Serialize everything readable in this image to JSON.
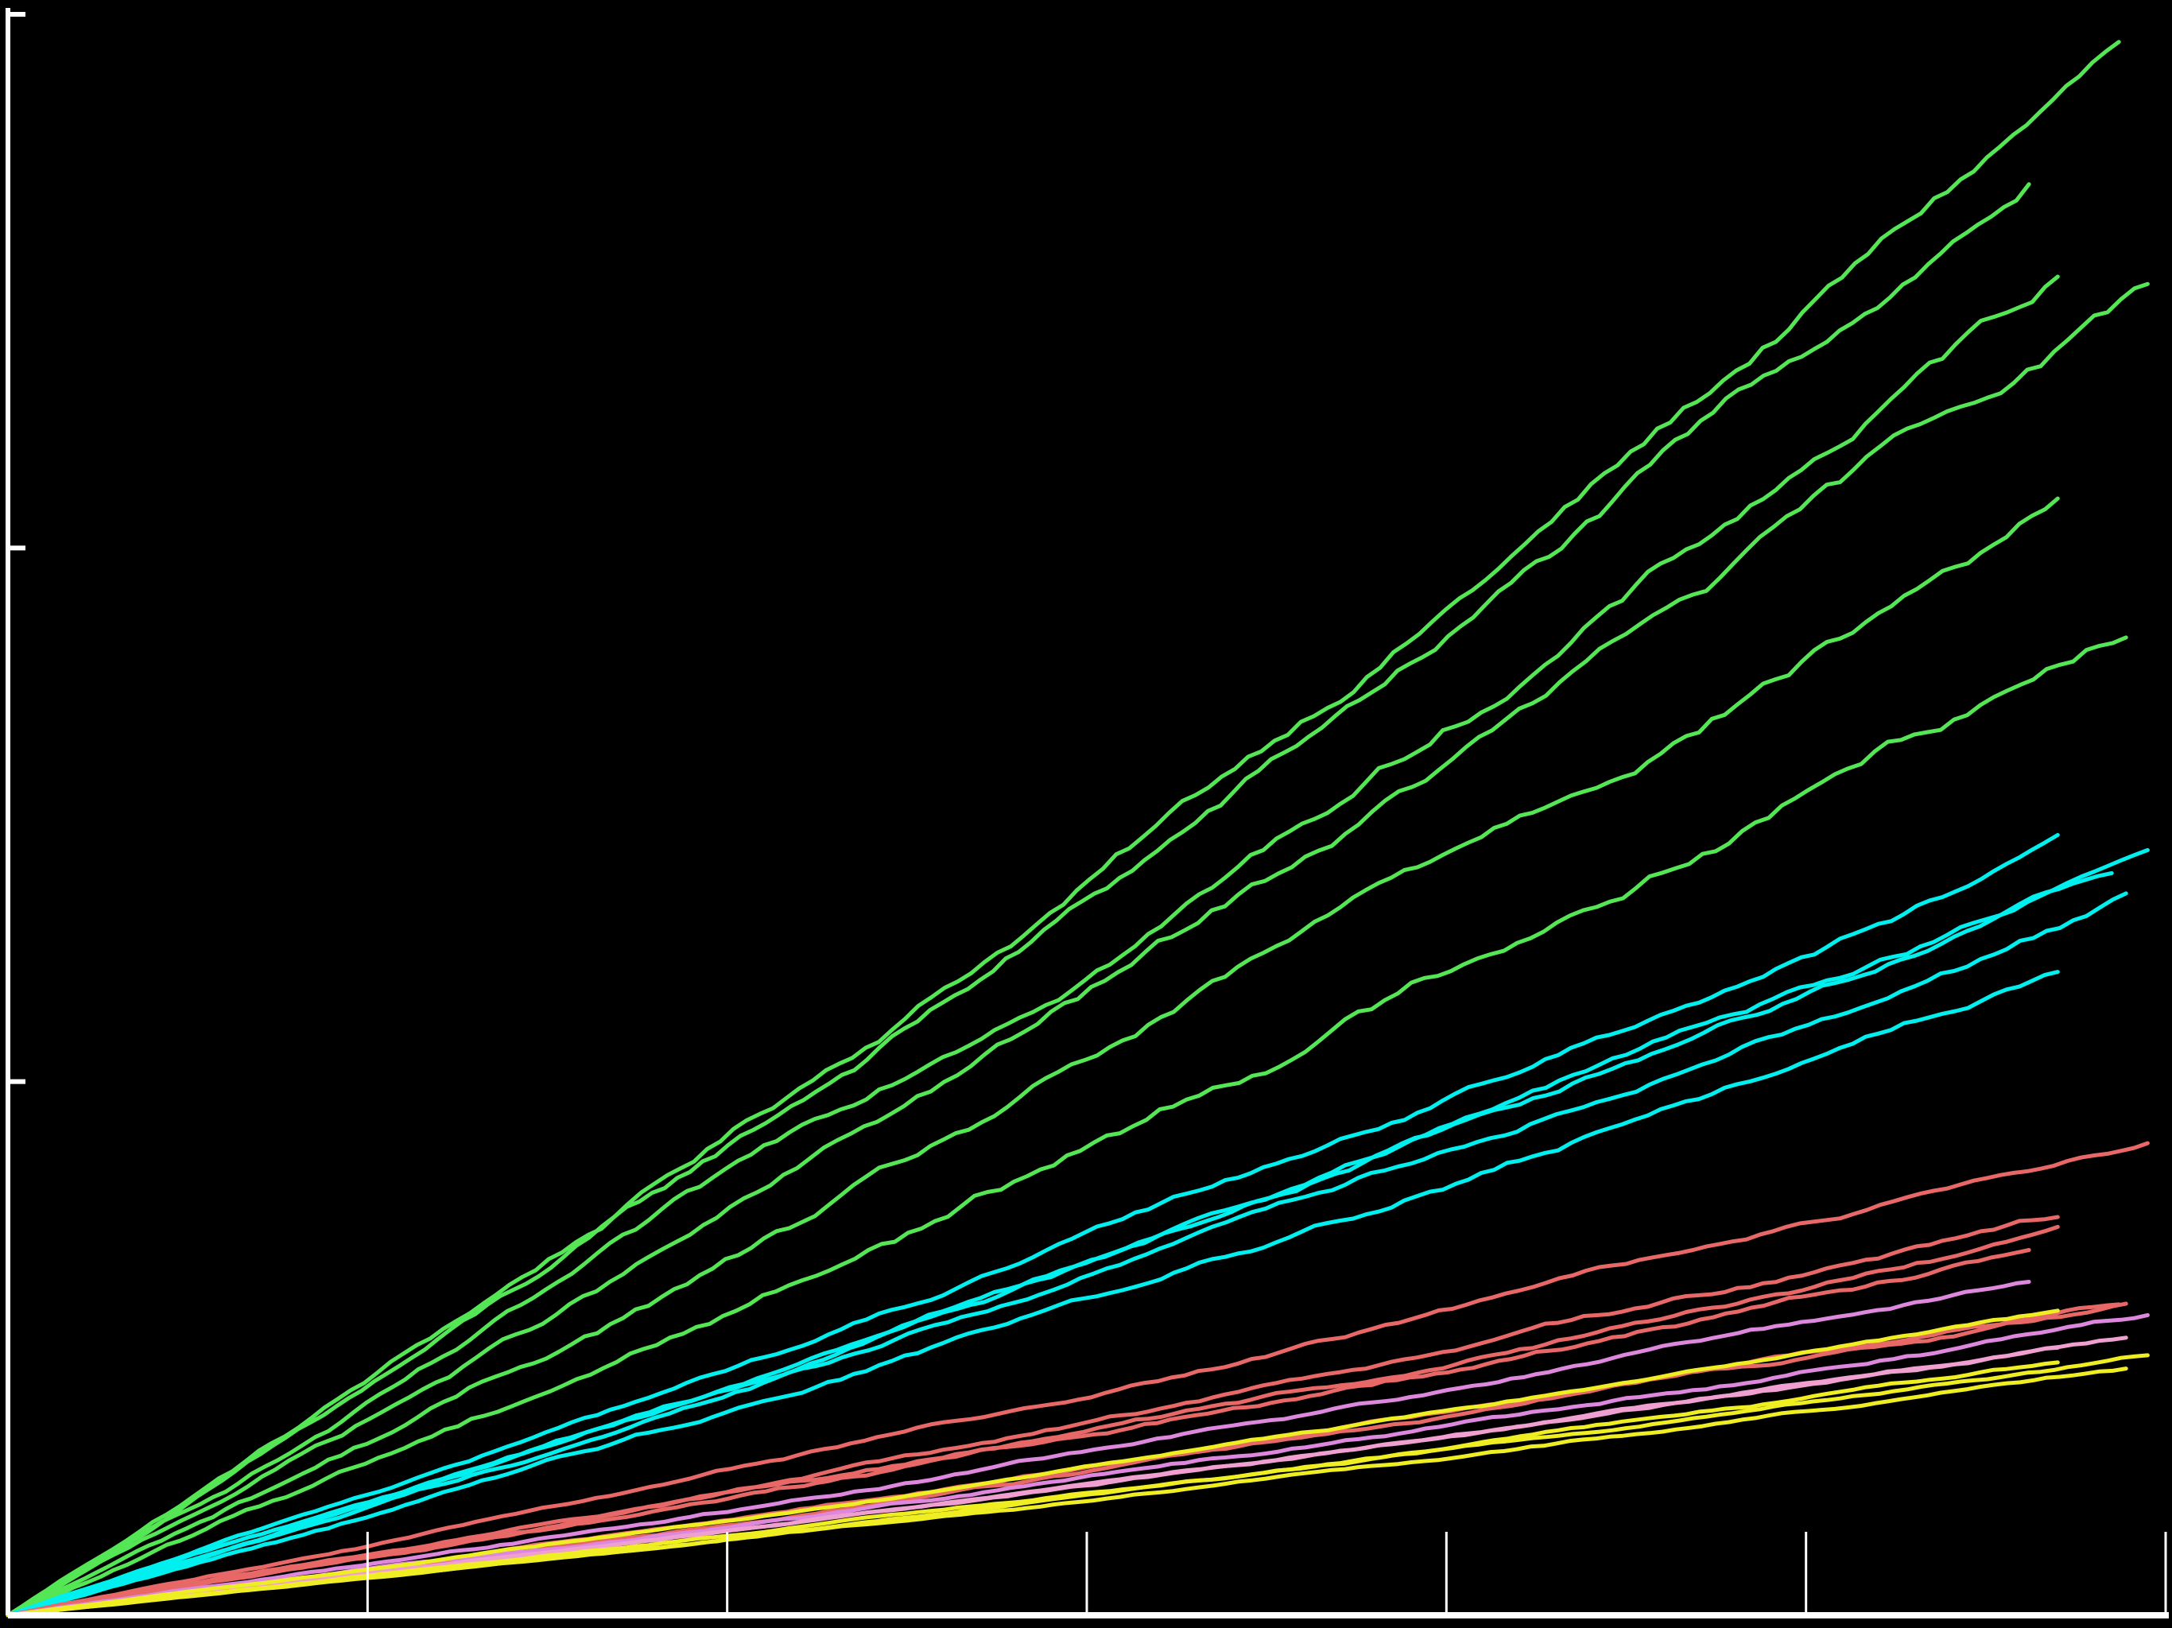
{
  "chart_data": {
    "type": "line",
    "title": "",
    "xlabel": "",
    "ylabel": "",
    "xlim": [
      0,
      6
    ],
    "ylim": [
      0,
      3
    ],
    "x_ticks": [
      1,
      2,
      3,
      4,
      5,
      6
    ],
    "y_ticks": [
      1,
      2,
      3
    ],
    "grid": false,
    "legend": "none",
    "background": "#000000",
    "axis_color": "#ffffff",
    "series": [
      {
        "color": "#55e655",
        "end_x": 5.87,
        "end_y": 2.93,
        "wobble": 0.012
      },
      {
        "color": "#55e655",
        "end_x": 5.62,
        "end_y": 2.68,
        "wobble": 0.012
      },
      {
        "color": "#55e655",
        "end_x": 5.7,
        "end_y": 2.51,
        "wobble": 0.012
      },
      {
        "color": "#55e655",
        "end_x": 5.95,
        "end_y": 2.47,
        "wobble": 0.012
      },
      {
        "color": "#55e655",
        "end_x": 5.7,
        "end_y": 2.09,
        "wobble": 0.012
      },
      {
        "color": "#55e655",
        "end_x": 5.89,
        "end_y": 1.89,
        "wobble": 0.012
      },
      {
        "color": "#00f0f0",
        "end_x": 5.7,
        "end_y": 1.44,
        "wobble": 0.006
      },
      {
        "color": "#00f0f0",
        "end_x": 5.95,
        "end_y": 1.42,
        "wobble": 0.006
      },
      {
        "color": "#00f0f0",
        "end_x": 5.85,
        "end_y": 1.41,
        "wobble": 0.006
      },
      {
        "color": "#00f0f0",
        "end_x": 5.89,
        "end_y": 1.36,
        "wobble": 0.006
      },
      {
        "color": "#00f0f0",
        "end_x": 5.7,
        "end_y": 1.22,
        "wobble": 0.006
      },
      {
        "color": "#e86868",
        "end_x": 5.95,
        "end_y": 0.89,
        "wobble": 0.004
      },
      {
        "color": "#e86868",
        "end_x": 5.7,
        "end_y": 0.74,
        "wobble": 0.004
      },
      {
        "color": "#e86868",
        "end_x": 5.7,
        "end_y": 0.7,
        "wobble": 0.004
      },
      {
        "color": "#e86868",
        "end_x": 5.62,
        "end_y": 0.68,
        "wobble": 0.004
      },
      {
        "color": "#e86868",
        "end_x": 5.87,
        "end_y": 0.59,
        "wobble": 0.003
      },
      {
        "color": "#e86868",
        "end_x": 5.89,
        "end_y": 0.57,
        "wobble": 0.003
      },
      {
        "color": "#dd88dd",
        "end_x": 5.62,
        "end_y": 0.62,
        "wobble": 0.003
      },
      {
        "color": "#dd88dd",
        "end_x": 5.95,
        "end_y": 0.55,
        "wobble": 0.003
      },
      {
        "color": "#f0a0d0",
        "end_x": 5.89,
        "end_y": 0.52,
        "wobble": 0.002
      },
      {
        "color": "#f0a0d0",
        "end_x": 5.7,
        "end_y": 0.5,
        "wobble": 0.002
      },
      {
        "color": "#eeee22",
        "end_x": 5.7,
        "end_y": 0.56,
        "wobble": 0.002
      },
      {
        "color": "#eeee22",
        "end_x": 5.95,
        "end_y": 0.49,
        "wobble": 0.002
      },
      {
        "color": "#eeee22",
        "end_x": 5.89,
        "end_y": 0.46,
        "wobble": 0.002
      },
      {
        "color": "#eeee22",
        "end_x": 5.7,
        "end_y": 0.47,
        "wobble": 0.002
      }
    ]
  }
}
